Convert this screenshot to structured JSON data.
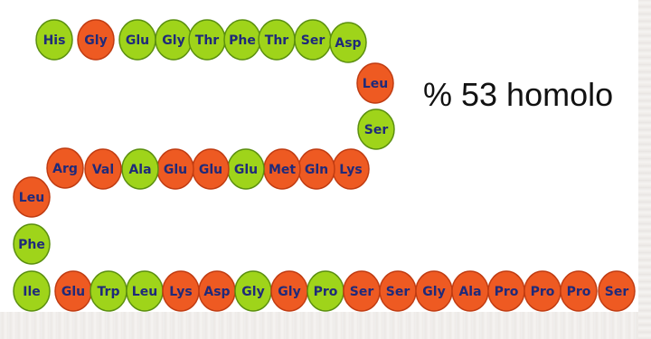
{
  "colors": {
    "green": "#9fd41a",
    "orange": "#ee5a22",
    "outline": "#2e7a18",
    "text": "#1f2a7a"
  },
  "homology_label": "% 53 homolo",
  "chain": [
    {
      "label": "His",
      "color": "green"
    },
    {
      "label": "Gly",
      "color": "orange"
    },
    {
      "label": "Glu",
      "color": "green"
    },
    {
      "label": "Gly",
      "color": "green"
    },
    {
      "label": "Thr",
      "color": "green"
    },
    {
      "label": "Phe",
      "color": "green"
    },
    {
      "label": "Thr",
      "color": "green"
    },
    {
      "label": "Ser",
      "color": "green"
    },
    {
      "label": "Asp",
      "color": "green"
    },
    {
      "label": "Leu",
      "color": "orange"
    },
    {
      "label": "Ser",
      "color": "green"
    },
    {
      "label": "Lys",
      "color": "orange"
    },
    {
      "label": "Gln",
      "color": "orange"
    },
    {
      "label": "Met",
      "color": "orange"
    },
    {
      "label": "Glu",
      "color": "green"
    },
    {
      "label": "Glu",
      "color": "orange"
    },
    {
      "label": "Glu",
      "color": "orange"
    },
    {
      "label": "Ala",
      "color": "green"
    },
    {
      "label": "Val",
      "color": "orange"
    },
    {
      "label": "Arg",
      "color": "orange"
    },
    {
      "label": "Leu",
      "color": "orange"
    },
    {
      "label": "Phe",
      "color": "green"
    },
    {
      "label": "Ile",
      "color": "green"
    },
    {
      "label": "Glu",
      "color": "orange"
    },
    {
      "label": "Trp",
      "color": "green"
    },
    {
      "label": "Leu",
      "color": "green"
    },
    {
      "label": "Lys",
      "color": "orange"
    },
    {
      "label": "Asp",
      "color": "orange"
    },
    {
      "label": "Gly",
      "color": "green"
    },
    {
      "label": "Gly",
      "color": "orange"
    },
    {
      "label": "Pro",
      "color": "green"
    },
    {
      "label": "Ser",
      "color": "orange"
    },
    {
      "label": "Ser",
      "color": "orange"
    },
    {
      "label": "Gly",
      "color": "orange"
    },
    {
      "label": "Ala",
      "color": "orange"
    },
    {
      "label": "Pro",
      "color": "orange"
    },
    {
      "label": "Pro",
      "color": "orange"
    },
    {
      "label": "Pro",
      "color": "orange"
    },
    {
      "label": "Ser",
      "color": "orange"
    }
  ]
}
